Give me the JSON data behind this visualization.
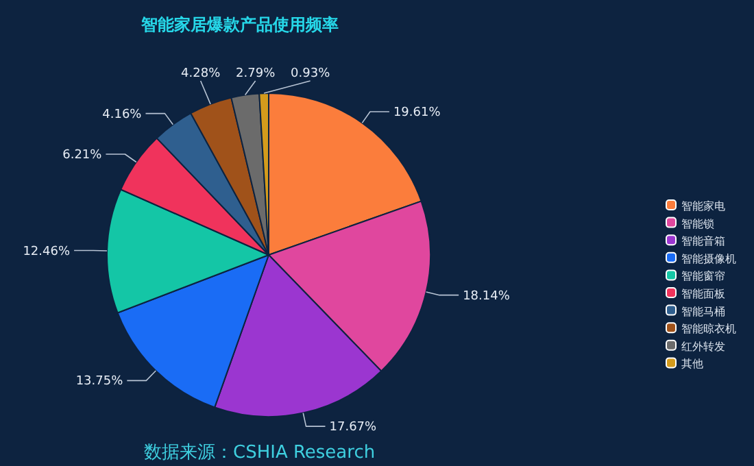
{
  "chart_data": {
    "type": "pie",
    "title": "智能家居爆款产品使用频率",
    "categories": [
      "智能家电",
      "智能锁",
      "智能音箱",
      "智能摄像机",
      "智能窗帘",
      "智能面板",
      "智能马桶",
      "智能晾衣机",
      "红外转发",
      "其他"
    ],
    "values": [
      19.61,
      18.14,
      17.67,
      13.75,
      12.46,
      6.21,
      4.16,
      4.28,
      2.79,
      0.93
    ],
    "colors": [
      "#fb7d3c",
      "#e0479e",
      "#9b36d0",
      "#1a6cf5",
      "#14c6a6",
      "#f0335c",
      "#2f5f8f",
      "#a0521a",
      "#6b6b6b",
      "#d49b1c"
    ],
    "value_labels": [
      "19.61%",
      "18.14%",
      "17.67%",
      "13.75%",
      "12.46%",
      "6.21%",
      "4.16%",
      "4.28%",
      "2.79%",
      "0.93%"
    ],
    "legend": "right",
    "annotations": [
      "数据来源：CSHIA Research"
    ]
  }
}
